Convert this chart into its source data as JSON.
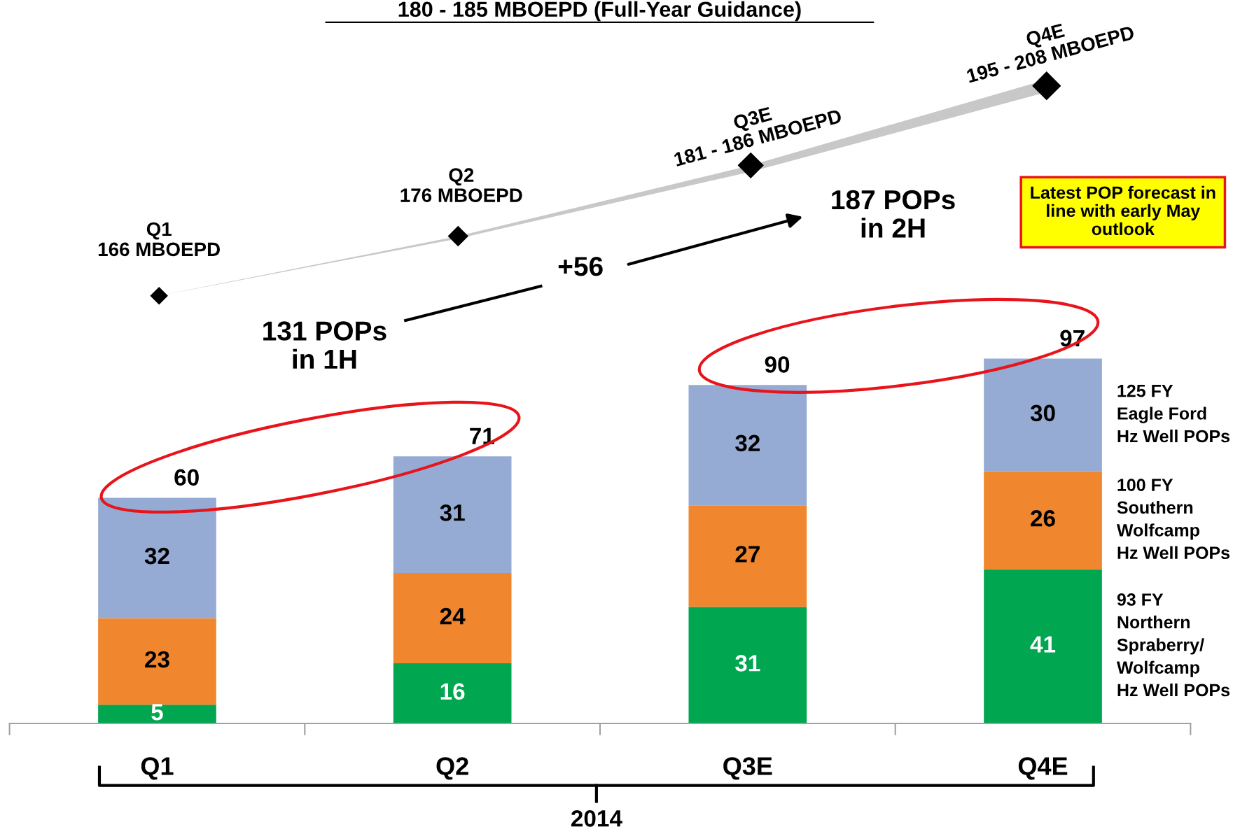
{
  "chart_data": {
    "type": "bar",
    "stacked": true,
    "title": "180 - 185 MBOEPD (Full-Year Guidance)",
    "categories": [
      "Q1",
      "Q2",
      "Q3E",
      "Q4E"
    ],
    "series": [
      {
        "name": "93 FY\nNorthern\nSpraberry/\nWolfcamp\nHz Well POPs",
        "color": "#00a650",
        "values": [
          5,
          16,
          31,
          41
        ]
      },
      {
        "name": "100 FY\nSouthern\nWolfcamp\nHz Well POPs",
        "color": "#f0862e",
        "values": [
          23,
          24,
          27,
          26
        ]
      },
      {
        "name": "125 FY\nEagle Ford\nHz Well POPs",
        "color": "#95abd3",
        "values": [
          32,
          31,
          32,
          30
        ]
      }
    ],
    "totals": [
      "60",
      "71",
      "90",
      "97"
    ],
    "data_labels": true,
    "tick_labels": "x",
    "grid": false,
    "legend": false,
    "annotations": [
      "Q1\n166 MBOEPD",
      "Q2\n176 MBOEPD",
      "Q3E\n181 - 186 MBOEPD",
      "Q4E\n195 - 208 MBOEPD",
      "131 POPs\nin 1H",
      "+56",
      "187 POPs\nin 2H",
      "Latest POP forecast in\nline with early May\noutlook",
      "2014"
    ]
  }
}
